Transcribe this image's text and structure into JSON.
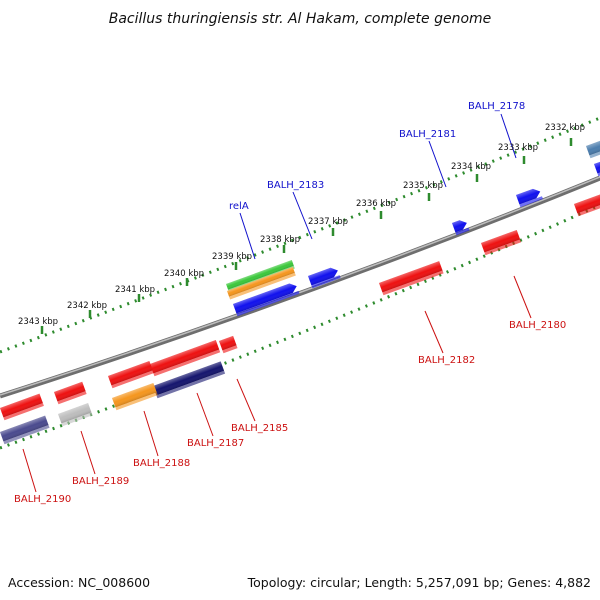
{
  "title": "Bacillus thuringiensis str. Al Hakam, complete genome",
  "accession": "Accession: NC_008600",
  "topology": "Topology: circular; Length: 5,257,091 bp; Genes: 4,882",
  "colors": {
    "backbone": "#8a8a8a",
    "tick_dots": "#2e8b2e",
    "blue_label": "#1111cc",
    "red_label": "#cc1111",
    "gene_red": "#ee1111",
    "gene_blue": "#1111ee",
    "gene_orange": "#f5961e",
    "gene_green": "#3cc83c",
    "gene_navy": "#15156e",
    "gene_slate": "#4a4a8e",
    "gene_gray": "#bdbdbd",
    "gene_steel": "#4b7dad"
  },
  "kbp_ticks": [
    {
      "label": "2332 kbp"
    },
    {
      "label": "2333 kbp"
    },
    {
      "label": "2334 kbp"
    },
    {
      "label": "2335 kbp"
    },
    {
      "label": "2336 kbp"
    },
    {
      "label": "2337 kbp"
    },
    {
      "label": "2338 kbp"
    },
    {
      "label": "2339 kbp"
    },
    {
      "label": "2340 kbp"
    },
    {
      "label": "2341 kbp"
    },
    {
      "label": "2342 kbp"
    },
    {
      "label": "2343 kbp"
    }
  ],
  "gene_labels": [
    {
      "name": "BALH_2178",
      "strand": "forward"
    },
    {
      "name": "BALH_2181",
      "strand": "forward"
    },
    {
      "name": "BALH_2183",
      "strand": "forward"
    },
    {
      "name": "relA",
      "strand": "forward"
    },
    {
      "name": "BALH_2180",
      "strand": "reverse"
    },
    {
      "name": "BALH_2182",
      "strand": "reverse"
    },
    {
      "name": "BALH_2185",
      "strand": "reverse"
    },
    {
      "name": "BALH_2187",
      "strand": "reverse"
    },
    {
      "name": "BALH_2188",
      "strand": "reverse"
    },
    {
      "name": "BALH_2189",
      "strand": "reverse"
    },
    {
      "name": "BALH_2190",
      "strand": "reverse"
    }
  ]
}
